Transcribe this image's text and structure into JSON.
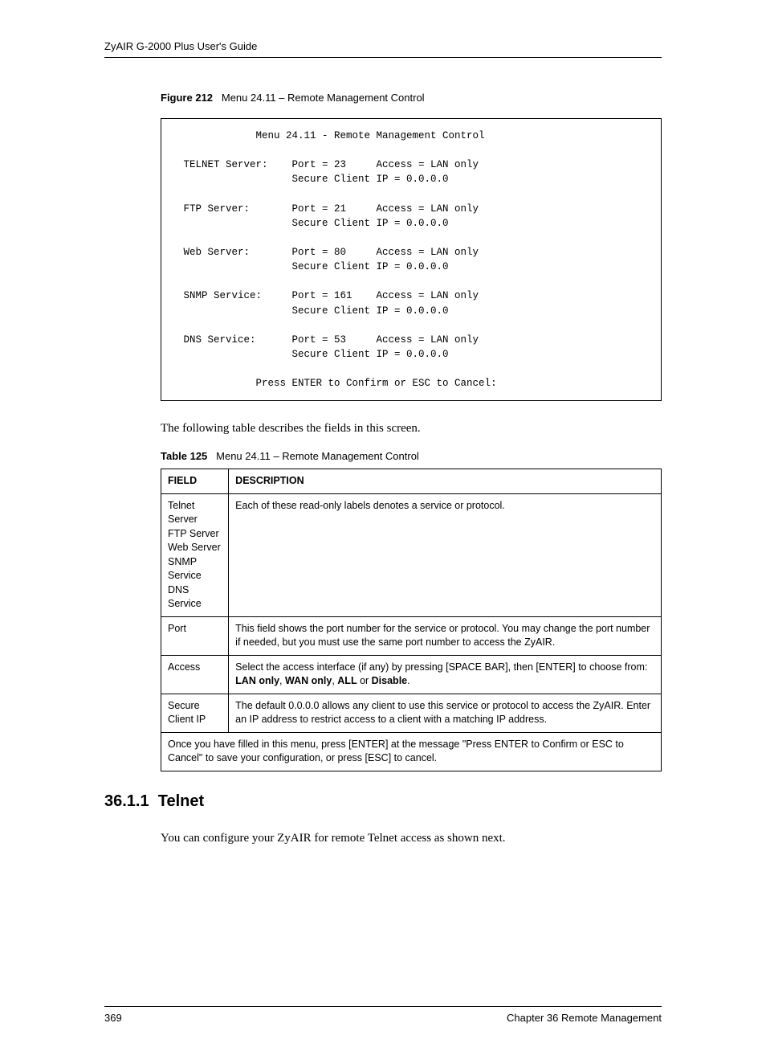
{
  "header": {
    "title": "ZyAIR G-2000 Plus User's Guide"
  },
  "figure": {
    "label": "Figure 212",
    "title": "Menu 24.11 – Remote Management Control"
  },
  "terminal": {
    "menu_title": "Menu 24.11 - Remote Management Control",
    "servers": [
      {
        "name": "TELNET Server:",
        "port": "23",
        "access": "LAN only",
        "secure_ip": "0.0.0.0"
      },
      {
        "name": "FTP Server:",
        "port": "21",
        "access": "LAN only",
        "secure_ip": "0.0.0.0"
      },
      {
        "name": "Web Server:",
        "port": "80",
        "access": "LAN only",
        "secure_ip": "0.0.0.0"
      },
      {
        "name": "SNMP Service:",
        "port": "161",
        "access": "LAN only",
        "secure_ip": "0.0.0.0"
      },
      {
        "name": "DNS Service:",
        "port": "53",
        "access": "LAN only",
        "secure_ip": "0.0.0.0"
      }
    ],
    "footer": "Press ENTER to Confirm or ESC to Cancel:"
  },
  "intro_text": "The following table describes the fields in this screen.",
  "table": {
    "label": "Table 125",
    "title": "Menu 24.11 – Remote Management Control",
    "columns": [
      "FIELD",
      "DESCRIPTION"
    ],
    "rows": [
      {
        "field_lines": [
          "Telnet Server",
          "FTP Server",
          "Web Server",
          "SNMP Service",
          "DNS Service"
        ],
        "description_plain": "Each of these read-only labels denotes a service or protocol."
      },
      {
        "field_lines": [
          "Port"
        ],
        "description_plain": "This field shows the port number for the service or protocol. You may change the port number if needed, but you must use the same port number to access the ZyAIR."
      },
      {
        "field_lines": [
          "Access"
        ],
        "description_prefix": "Select the access interface (if any) by pressing [SPACE BAR], then [ENTER] to choose from: ",
        "bold_parts": [
          "LAN only",
          "WAN only",
          "ALL",
          "Disable"
        ],
        "sep": ", ",
        "sep_last": " or ",
        "period": "."
      },
      {
        "field_lines": [
          "Secure Client IP"
        ],
        "description_plain": "The default 0.0.0.0 allows any client to use this service or protocol to access the ZyAIR. Enter an IP address to restrict access to a client with a matching IP address."
      }
    ],
    "footer_row": "Once you have filled in this menu, press [ENTER] at the message \"Press ENTER to Confirm or ESC to Cancel\" to save your configuration, or press [ESC] to cancel."
  },
  "section": {
    "number": "36.1.1",
    "title": "Telnet",
    "body": "You can configure your ZyAIR for remote Telnet access as shown next."
  },
  "footer": {
    "page": "369",
    "chapter": "Chapter 36 Remote Management"
  }
}
